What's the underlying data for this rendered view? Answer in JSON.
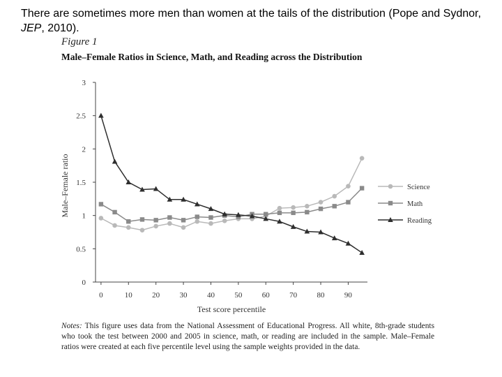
{
  "slide": {
    "caption_before": "There are sometimes more men than women at the tails of the distribution (Pope and Sydnor, ",
    "caption_journal": "JEP",
    "caption_after": ", 2010)."
  },
  "figure": {
    "label": "Figure 1",
    "title": "Male–Female Ratios in Science, Math, and Reading across the Distribution",
    "notes_label": "Notes:",
    "notes_text": " This figure uses data from the National Assessment of Educational Progress. All white, 8th-grade students who took the test between 2000 and 2005 in science, math, or reading are included in the sample. Male–Female ratios were created at each five percentile level using the sample weights provided in the data."
  },
  "chart_data": {
    "type": "line",
    "title": "Male–Female Ratios in Science, Math, and Reading across the Distribution",
    "xlabel": "Test score percentile",
    "ylabel": "Male–Female ratio",
    "x": [
      0,
      5,
      10,
      15,
      20,
      25,
      30,
      35,
      40,
      45,
      50,
      55,
      60,
      65,
      70,
      75,
      80,
      85,
      90,
      95
    ],
    "xticks": [
      0,
      10,
      20,
      30,
      40,
      50,
      60,
      70,
      80,
      90
    ],
    "xlim": [
      -2,
      97
    ],
    "ylim": [
      0,
      3
    ],
    "yticks": [
      0,
      0.5,
      1,
      1.5,
      2,
      2.5,
      3
    ],
    "ytick_labels": [
      "0",
      "0.5",
      "1",
      "1.5",
      "2",
      "2.5",
      "3"
    ],
    "grid": false,
    "legend_position": "right",
    "series": [
      {
        "name": "Science",
        "marker": "circle",
        "color": "#b9b9b9",
        "values": [
          0.96,
          0.85,
          0.82,
          0.78,
          0.84,
          0.88,
          0.82,
          0.91,
          0.88,
          0.92,
          0.95,
          0.95,
          0.99,
          1.11,
          1.12,
          1.14,
          1.2,
          1.29,
          1.44,
          1.86
        ]
      },
      {
        "name": "Math",
        "marker": "square",
        "color": "#8a8a8a",
        "values": [
          1.17,
          1.05,
          0.91,
          0.94,
          0.93,
          0.97,
          0.93,
          0.98,
          0.97,
          1.0,
          0.98,
          1.02,
          1.02,
          1.04,
          1.04,
          1.05,
          1.1,
          1.14,
          1.2,
          1.41
        ]
      },
      {
        "name": "Reading",
        "marker": "triangle",
        "color": "#2e2e2e",
        "values": [
          2.5,
          1.81,
          1.5,
          1.39,
          1.4,
          1.24,
          1.24,
          1.17,
          1.1,
          1.02,
          1.01,
          0.99,
          0.95,
          0.91,
          0.83,
          0.76,
          0.75,
          0.66,
          0.58,
          0.44
        ]
      }
    ]
  }
}
